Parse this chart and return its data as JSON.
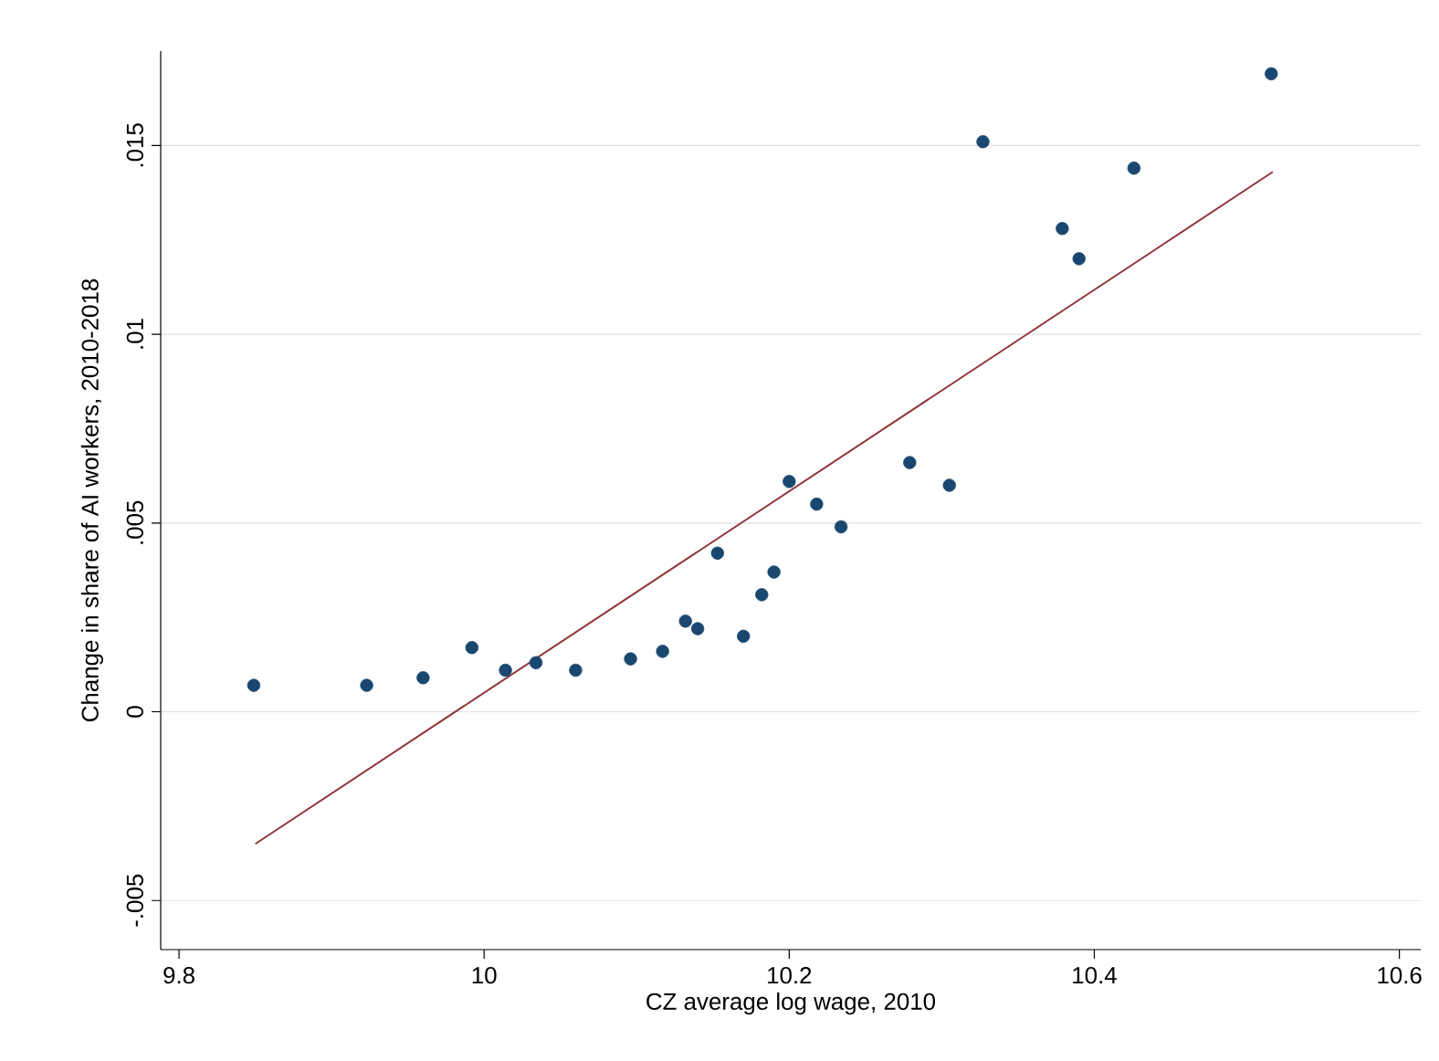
{
  "chart_data": {
    "type": "scatter",
    "xlabel": "CZ average log wage, 2010",
    "ylabel": "Change in share of AI workers, 2010-2018",
    "xlim": [
      9.788,
      10.614
    ],
    "ylim": [
      -0.0063,
      0.0175
    ],
    "xticks": [
      9.8,
      10,
      10.2,
      10.4,
      10.6
    ],
    "yticks": [
      {
        "value": -0.005,
        "label": "-.005"
      },
      {
        "value": 0,
        "label": "0"
      },
      {
        "value": 0.005,
        "label": ".005"
      },
      {
        "value": 0.01,
        "label": ".01"
      },
      {
        "value": 0.015,
        "label": ".015"
      }
    ],
    "grid": "y",
    "marker": "circle",
    "series": [
      {
        "color": "#1a476f",
        "x": [
          9.849,
          9.923,
          9.96,
          9.992,
          10.014,
          10.034,
          10.06,
          10.096,
          10.117,
          10.132,
          10.14,
          10.153,
          10.17,
          10.182,
          10.19,
          10.2,
          10.218,
          10.234,
          10.279,
          10.305,
          10.327,
          10.379,
          10.39,
          10.426,
          10.516
        ],
        "values": [
          0.0007,
          0.0007,
          0.0009,
          0.0017,
          0.0011,
          0.0013,
          0.0011,
          0.0014,
          0.0016,
          0.0024,
          0.0022,
          0.0042,
          0.002,
          0.0031,
          0.0037,
          0.0061,
          0.0055,
          0.0049,
          0.0066,
          0.006,
          0.0151,
          0.0128,
          0.012,
          0.0144,
          0.0169
        ]
      },
      {
        "type": "line",
        "marker": "none",
        "color": "#90353b",
        "x": [
          9.85,
          10.517
        ],
        "values": [
          -0.0035,
          0.0143
        ]
      }
    ]
  }
}
